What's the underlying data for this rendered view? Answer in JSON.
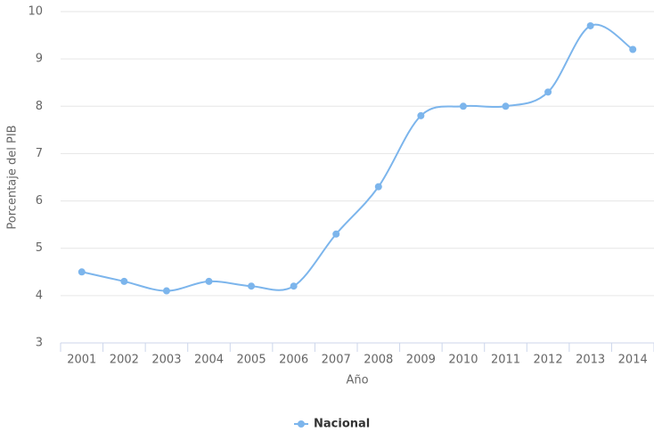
{
  "chart_data": {
    "type": "line",
    "categories": [
      "2001",
      "2002",
      "2003",
      "2004",
      "2005",
      "2006",
      "2007",
      "2008",
      "2009",
      "2010",
      "2011",
      "2012",
      "2013",
      "2014"
    ],
    "series": [
      {
        "name": "Nacional",
        "color": "#7cb5ec",
        "values": [
          4.5,
          4.3,
          4.1,
          4.3,
          4.2,
          4.2,
          5.3,
          6.3,
          7.8,
          8.0,
          8.0,
          8.3,
          9.7,
          9.2
        ]
      }
    ],
    "ylabel": "Porcentaje del PIB",
    "xlabel": "Año",
    "ylim": [
      3,
      10
    ],
    "yticks": [
      3,
      4,
      5,
      6,
      7,
      8,
      9,
      10
    ],
    "grid": true,
    "legend": "bottom"
  }
}
